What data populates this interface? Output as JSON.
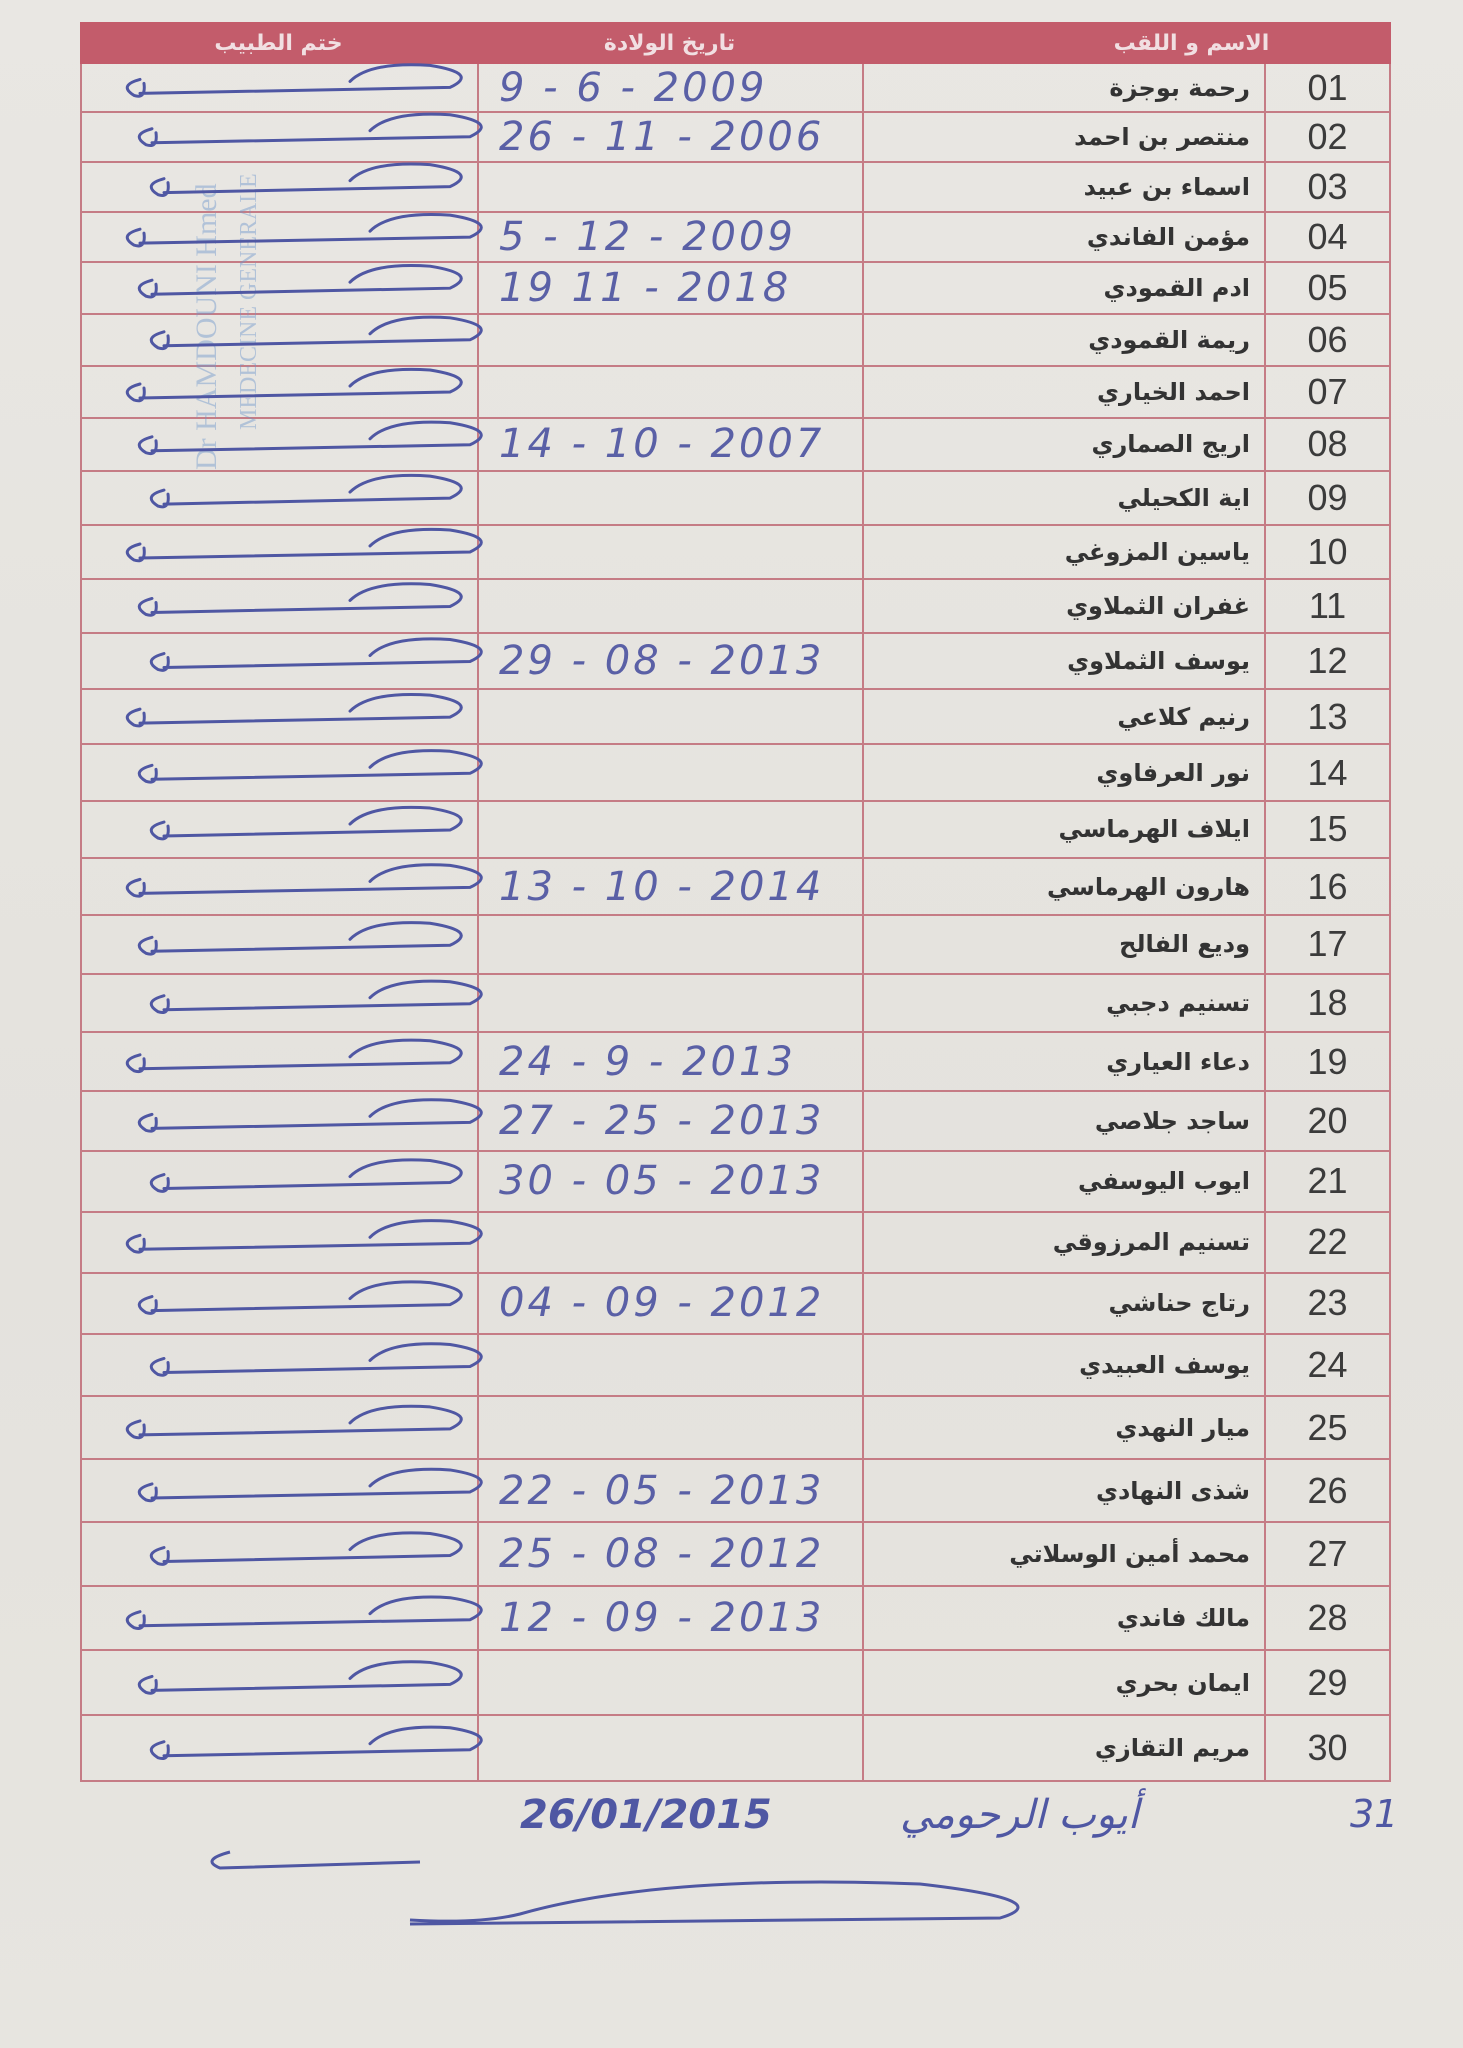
{
  "header": {
    "stamp_col": "ختم الطبيب",
    "date_col": "تاريخ الولادة",
    "name_col": "الاسم و اللقب"
  },
  "rows": [
    {
      "num": "01",
      "name": "رحمة بوجزة",
      "dob": "9 - 6 - 2009"
    },
    {
      "num": "02",
      "name": "منتصر بن احمد",
      "dob": "26 - 11 - 2006"
    },
    {
      "num": "03",
      "name": "اسماء بن عبيد",
      "dob": ""
    },
    {
      "num": "04",
      "name": "مؤمن الفاندي",
      "dob": "5 - 12 - 2009"
    },
    {
      "num": "05",
      "name": "ادم القمودي",
      "dob": "19 11 - 2018"
    },
    {
      "num": "06",
      "name": "ريمة القمودي",
      "dob": ""
    },
    {
      "num": "07",
      "name": "احمد الخياري",
      "dob": ""
    },
    {
      "num": "08",
      "name": "اريج الصماري",
      "dob": "14 - 10 - 2007"
    },
    {
      "num": "09",
      "name": "اية الكحيلي",
      "dob": ""
    },
    {
      "num": "10",
      "name": "ياسين المزوغي",
      "dob": ""
    },
    {
      "num": "11",
      "name": "غفران الثملاوي",
      "dob": ""
    },
    {
      "num": "12",
      "name": "يوسف الثملاوي",
      "dob": "29 - 08 - 2013"
    },
    {
      "num": "13",
      "name": "رنيم كلاعي",
      "dob": ""
    },
    {
      "num": "14",
      "name": "نور العرفاوي",
      "dob": ""
    },
    {
      "num": "15",
      "name": "ايلاف الهرماسي",
      "dob": ""
    },
    {
      "num": "16",
      "name": "هارون الهرماسي",
      "dob": "13 - 10 - 2014"
    },
    {
      "num": "17",
      "name": "وديع الفالح",
      "dob": ""
    },
    {
      "num": "18",
      "name": "تسنيم دجبي",
      "dob": ""
    },
    {
      "num": "19",
      "name": "دعاء العياري",
      "dob": "24 - 9 - 2013"
    },
    {
      "num": "20",
      "name": "ساجد جلاصي",
      "dob": "27 - 25 - 2013"
    },
    {
      "num": "21",
      "name": "ايوب اليوسفي",
      "dob": "30 - 05 - 2013"
    },
    {
      "num": "22",
      "name": "تسنيم المرزوقي",
      "dob": ""
    },
    {
      "num": "23",
      "name": "رتاج حناشي",
      "dob": "04 - 09 - 2012"
    },
    {
      "num": "24",
      "name": "يوسف العبيدي",
      "dob": ""
    },
    {
      "num": "25",
      "name": "ميار النهدي",
      "dob": ""
    },
    {
      "num": "26",
      "name": "شذى النهادي",
      "dob": "22 - 05 - 2013"
    },
    {
      "num": "27",
      "name": "محمد أمين الوسلاتي",
      "dob": "25 - 08 - 2012"
    },
    {
      "num": "28",
      "name": "مالك فاندي",
      "dob": "12 - 09 - 2013"
    },
    {
      "num": "29",
      "name": "ايمان بحري",
      "dob": ""
    },
    {
      "num": "30",
      "name": "مريم التقازي",
      "dob": ""
    }
  ],
  "footer": {
    "num": "31",
    "name": "أيوب الرحومي",
    "dob": "26/01/2015"
  },
  "stamp": {
    "line1": "Dr HAMDOUNI Hmed",
    "line2": "MEDECINE GENERALE"
  },
  "colors": {
    "header": "#c35c6b",
    "grid": "#c57c85",
    "ink": "#4f57a3"
  }
}
